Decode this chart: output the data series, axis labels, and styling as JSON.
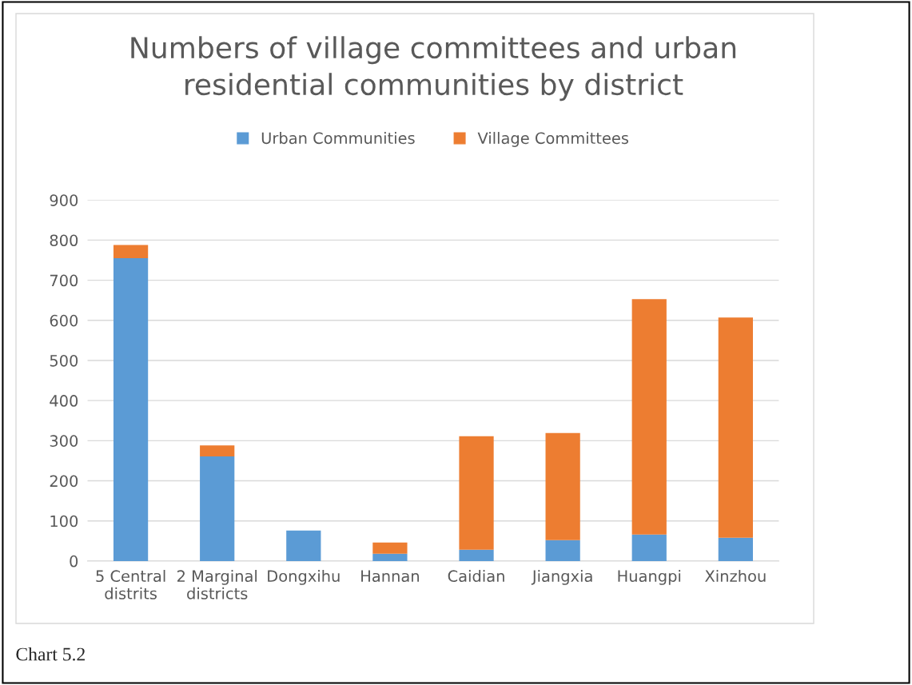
{
  "chart_data": {
    "type": "bar",
    "title": "Numbers of village committees and urban\nresidential communities by district",
    "categories": [
      "5 Central\ndistrits",
      "2 Marginal\ndistricts",
      "Dongxihu",
      "Hannan",
      "Caidian",
      "Jiangxia",
      "Huangpi",
      "Xinzhou"
    ],
    "series": [
      {
        "name": "Urban Communities",
        "color": "#5b9bd5",
        "values": [
          755,
          261,
          76,
          18,
          28,
          52,
          66,
          58
        ]
      },
      {
        "name": "Village Committees",
        "color": "#ed7d31",
        "values": [
          33,
          27,
          null,
          28,
          283,
          267,
          587,
          549
        ]
      }
    ],
    "stacked": true,
    "ylim": [
      0,
      900
    ],
    "yticks": [
      0,
      100,
      200,
      300,
      400,
      500,
      600,
      700,
      800,
      900
    ],
    "grid": "y",
    "legend": "top",
    "annotations": [
      "Chart 5.2"
    ]
  }
}
